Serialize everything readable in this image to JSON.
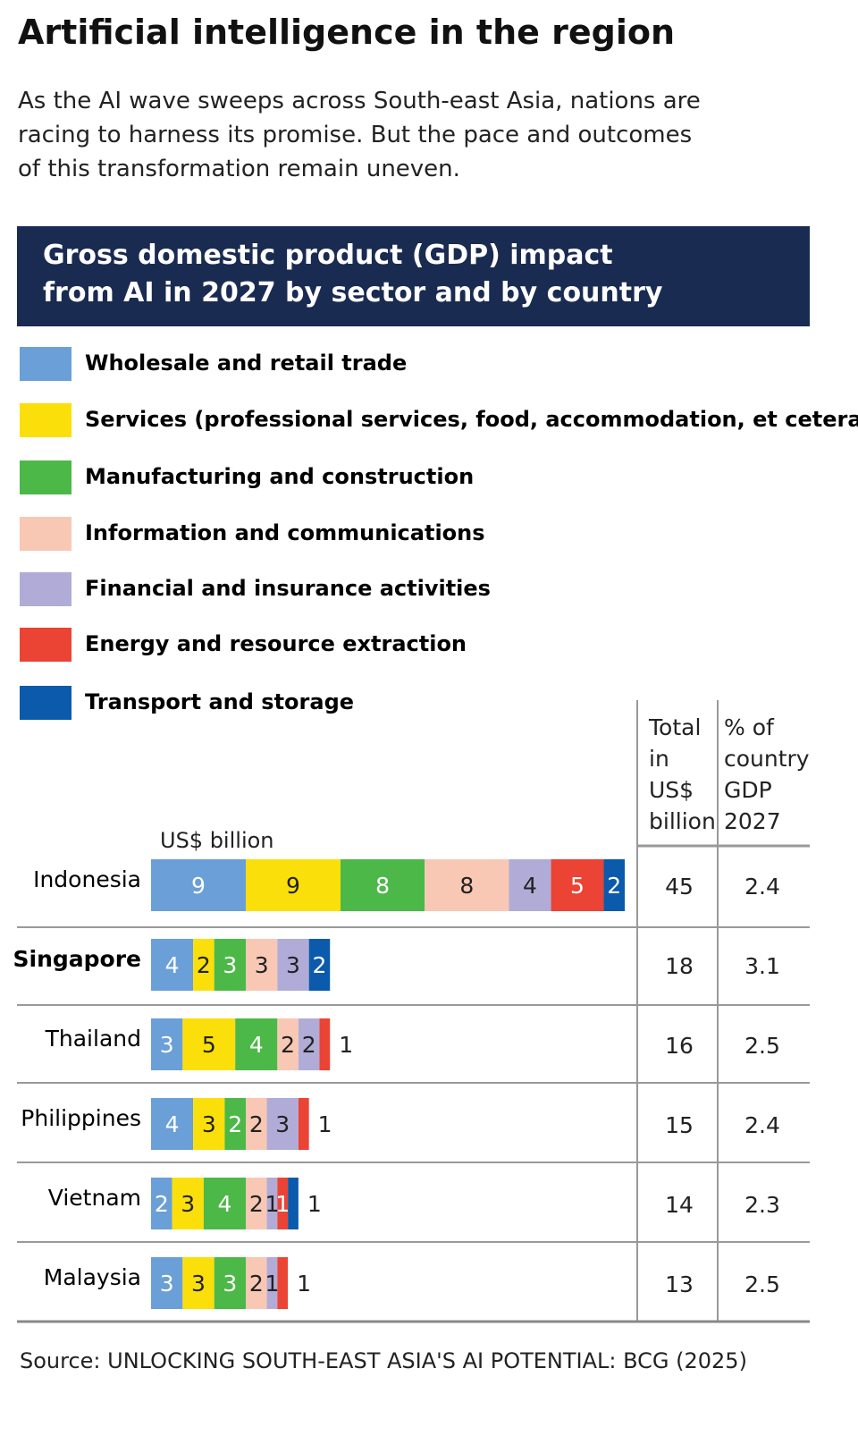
{
  "chart_data": {
    "type": "bar",
    "orientation": "horizontal",
    "stacked": true,
    "title": "Artificial intelligence in the region",
    "subtitle": "As the AI wave sweeps across South-east Asia, nations are racing to harness its promise. But the pace and outcomes of this transformation remain uneven.",
    "chart_title": "Gross domestic product (GDP) impact from AI in 2027 by sector and by country",
    "unit_label": "US$ billion",
    "categories": [
      "Indonesia",
      "Singapore",
      "Thailand",
      "Philippines",
      "Vietnam",
      "Malaysia"
    ],
    "highlight_index": 1,
    "series": [
      {
        "name": "Wholesale and retail trade",
        "color": "#6a9fd8",
        "values": [
          9,
          4,
          3,
          4,
          2,
          3
        ]
      },
      {
        "name": "Services (professional services, food, accommodation, et cetera)",
        "color": "#fbdf0a",
        "values": [
          9,
          2,
          5,
          3,
          3,
          3
        ]
      },
      {
        "name": "Manufacturing and construction",
        "color": "#4cb848",
        "values": [
          8,
          3,
          4,
          2,
          4,
          3
        ]
      },
      {
        "name": "Information and communications",
        "color": "#f8c8b5",
        "values": [
          8,
          3,
          2,
          2,
          2,
          2
        ]
      },
      {
        "name": "Financial and insurance activities",
        "color": "#b0acd7",
        "values": [
          4,
          3,
          2,
          3,
          1,
          1
        ]
      },
      {
        "name": "Energy and resource extraction",
        "color": "#eb4334",
        "values": [
          5,
          null,
          1,
          1,
          1,
          1
        ]
      },
      {
        "name": "Transport and storage",
        "color": "#0b5aab",
        "values": [
          2,
          2,
          null,
          null,
          1,
          null
        ]
      }
    ],
    "table": {
      "columns": [
        "Total in US$ billion",
        "% of country GDP 2027"
      ],
      "rows": [
        [
          45,
          2.4
        ],
        [
          18,
          3.1
        ],
        [
          16,
          2.5
        ],
        [
          15,
          2.4
        ],
        [
          14,
          2.3
        ],
        [
          13,
          2.5
        ]
      ]
    },
    "source": "Source: UNLOCKING SOUTH-EAST ASIA'S AI POTENTIAL: BCG (2025)"
  }
}
